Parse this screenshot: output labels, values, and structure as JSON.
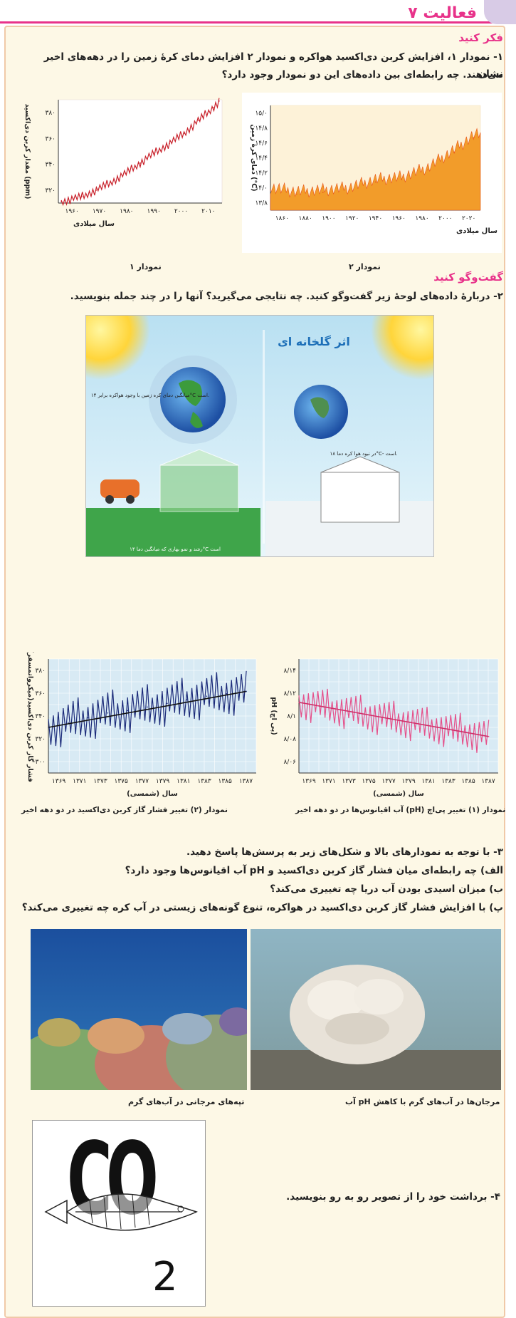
{
  "header": {
    "title": "فعالیت ۷"
  },
  "section1": {
    "heading": "فکر کنید",
    "question_line1": "۱- نمودار ۱، افزایش کربن دی‌اکسید هواکره و نمودار ۲ افزایش دمای کرهٔ زمین را در دهه‌های اخیر نشان",
    "question_line2": "می‌دهند. چه رابطه‌ای بین داده‌های این دو نمودار وجود دارد؟"
  },
  "chart_data": [
    {
      "type": "line",
      "title": "نمودار ۱",
      "xlabel": "سال میلادی",
      "ylabel": "مقدار کربن دی‌اکسید (ppm)",
      "x_ticks": [
        "۱۹۶۰",
        "۱۹۷۰",
        "۱۹۸۰",
        "۱۹۹۰",
        "۲۰۰۰",
        "۲۰۱۰"
      ],
      "y_ticks": [
        "۳۸۰",
        "۳۶۰",
        "۳۴۰",
        "۳۲۰"
      ],
      "ylim": [
        315,
        395
      ],
      "xlim": [
        1957,
        2013
      ],
      "series": [
        {
          "x": [
            1958,
            1965,
            1970,
            1975,
            1980,
            1985,
            1990,
            1995,
            2000,
            2005,
            2010,
            2012
          ],
          "values": [
            316,
            320,
            325,
            331,
            338,
            346,
            354,
            361,
            369,
            379,
            389,
            394
          ]
        }
      ]
    },
    {
      "type": "area",
      "title": "نمودار ۲",
      "xlabel": "سال میلادی",
      "ylabel": "دمای کرهٔ زمین (°C)",
      "x_ticks": [
        "۱۸۶۰",
        "۱۸۸۰",
        "۱۹۰۰",
        "۱۹۲۰",
        "۱۹۴۰",
        "۱۹۶۰",
        "۱۹۸۰",
        "۲۰۰۰",
        "۲۰۲۰"
      ],
      "y_ticks": [
        "۱۵/۰",
        "۱۴/۸",
        "۱۴/۶",
        "۱۴/۴",
        "۱۴/۲",
        "۱۴/۰",
        "۱۳/۸"
      ],
      "ylim": [
        13.7,
        15.0
      ],
      "xlim": [
        1860,
        2020
      ],
      "series": [
        {
          "x": [
            1860,
            1880,
            1900,
            1920,
            1940,
            1960,
            1980,
            2000,
            2015
          ],
          "values": [
            13.95,
            13.9,
            13.92,
            13.95,
            14.05,
            14.08,
            14.2,
            14.42,
            14.6
          ]
        }
      ]
    },
    {
      "type": "line",
      "title": "نمودار (۲) تغییر فشار گاز کربن دی‌اکسید در دو دهه اخیر",
      "xlabel": "سال (شمسی)",
      "ylabel": "فشار گاز کربن دی‌اکسید(میکرواتمسفر)",
      "x_ticks": [
        "۱۳۶۹",
        "۱۳۷۱",
        "۱۳۷۳",
        "۱۳۷۵",
        "۱۳۷۷",
        "۱۳۷۹",
        "۱۳۸۱",
        "۱۳۸۳",
        "۱۳۸۵",
        "۱۳۸۷"
      ],
      "y_ticks": [
        "۳۸۰",
        "۳۶۰",
        "۳۴۰",
        "۳۲۰",
        "۳۰۰"
      ],
      "ylim": [
        290,
        385
      ],
      "xlim": [
        1368,
        1389
      ],
      "series": [
        {
          "x": [
            1368,
            1370,
            1372,
            1374,
            1376,
            1378,
            1380,
            1382,
            1384,
            1386,
            1388
          ],
          "values": [
            328,
            332,
            336,
            340,
            342,
            345,
            348,
            351,
            354,
            356,
            358
          ]
        }
      ]
    },
    {
      "type": "line",
      "title": "نمودار (۱) تغییر پی‌اچ (pH) آب اقیانوس‌ها در دو دهه اخیر",
      "xlabel": "سال (شمسی)",
      "ylabel": "pH (پی اچ)",
      "x_ticks": [
        "۱۳۶۹",
        "۱۳۷۱",
        "۱۳۷۳",
        "۱۳۷۵",
        "۱۳۷۷",
        "۱۳۷۹",
        "۱۳۸۱",
        "۱۳۸۳",
        "۱۳۸۵",
        "۱۳۸۷"
      ],
      "y_ticks": [
        "۸/۱۴",
        "۸/۱۲",
        "۸/۱",
        "۸/۰۸",
        "۸/۰۶"
      ],
      "ylim": [
        8.05,
        8.15
      ],
      "xlim": [
        1368,
        1389
      ],
      "series": [
        {
          "x": [
            1368,
            1370,
            1372,
            1374,
            1376,
            1378,
            1380,
            1382,
            1384,
            1386,
            1388
          ],
          "values": [
            8.112,
            8.109,
            8.106,
            8.103,
            8.1,
            8.097,
            8.094,
            8.091,
            8.088,
            8.085,
            8.082
          ]
        }
      ]
    }
  ],
  "charts_top": {
    "caption1": "نمودار ۱",
    "caption2": "نمودار ۲"
  },
  "section2": {
    "heading": "گفت‌وگو کنید",
    "question": "۲- دربارهٔ داده‌های لوحهٔ زیر گفت‌وگو کنید. چه نتایجی می‌گیرید؟ آنها را در چند جمله بنویسید."
  },
  "greenhouse": {
    "title": "اثر گلخانه ای",
    "label_left": "میانگین دمای کره زمین با وجود هواکره برابر ۱۴°C است.",
    "label_right": "در نبود هوا کره دما ۱۸°C- است.",
    "label_bottom": "رشد و نمو بهاری که میانگین دما ۱۴°C است"
  },
  "charts_mid": {
    "caption_left": "نمودار (۲) تغییر فشار گاز کربن دی‌اکسید در دو دهه اخیر",
    "caption_right": "نمودار (۱) تغییر پی‌اچ (pH) آب اقیانوس‌ها در دو دهه اخیر"
  },
  "section3": {
    "q3": "۳- با توجه به نمودارهای بالا و شکل‌های زیر به پرسش‌ها پاسخ دهید.",
    "qa": "الف) چه رابطه‌ای میان فشار گاز کربن دی‌اکسید و pH آب اقیانوس‌ها وجود دارد؟",
    "qb": "ب) میزان اسیدی بودن آب دریا چه تغییری می‌کند؟",
    "qc": "پ) با افزایش فشار گاز کربن دی‌اکسید در هواکره، تنوع گونه‌های زیستی در آب کره چه تغییری می‌کند؟"
  },
  "photos": {
    "caption_left": "تپه‌های مرجانی در آب‌های گرم",
    "caption_right": "مرجان‌ها در آب‌های گرم با کاهش pH آب"
  },
  "section4": {
    "question": "۴- برداشت خود را از تصویر رو به رو بنویسید.",
    "co_text": "CO",
    "sub_text": "2"
  }
}
